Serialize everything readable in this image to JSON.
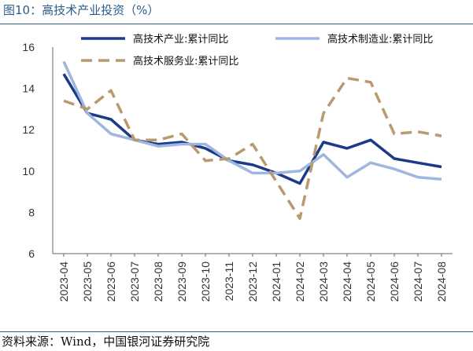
{
  "figure": {
    "title": "图10：高技术产业投资（%）",
    "source": "资料来源：Wind，中国银河证券研究院"
  },
  "chart_data": {
    "type": "line",
    "categories": [
      "2023-04",
      "2023-05",
      "2023-06",
      "2023-07",
      "2023-08",
      "2023-09",
      "2023-10",
      "2023-11",
      "2023-12",
      "2024-01",
      "2024-02",
      "2024-03",
      "2024-04",
      "2024-05",
      "2024-06",
      "2024-07",
      "2024-08"
    ],
    "ylim": [
      6,
      16
    ],
    "yticks": [
      6,
      8,
      10,
      12,
      14,
      16
    ],
    "grid": false,
    "legend": "top",
    "series": [
      {
        "name": "高技术产业:累计同比",
        "color": "#1b3a8a",
        "dash": "solid",
        "values": [
          14.7,
          12.8,
          12.5,
          11.5,
          11.3,
          11.4,
          11.1,
          10.5,
          10.3,
          9.9,
          9.4,
          11.4,
          11.1,
          11.5,
          10.6,
          10.4,
          10.2
        ]
      },
      {
        "name": "高技术制造业:累计同比",
        "color": "#9fb6e0",
        "dash": "solid",
        "values": [
          15.3,
          12.8,
          11.8,
          11.5,
          11.2,
          11.3,
          11.3,
          10.5,
          9.9,
          9.9,
          10.0,
          10.8,
          9.7,
          10.4,
          10.1,
          9.7,
          9.6
        ]
      },
      {
        "name": "高技术服务业:累计同比",
        "color": "#b89a6e",
        "dash": "dashed",
        "values": [
          13.4,
          13.0,
          13.9,
          11.5,
          11.5,
          11.8,
          10.5,
          10.6,
          11.3,
          null,
          7.7,
          12.8,
          14.5,
          14.3,
          11.8,
          11.9,
          11.7
        ]
      }
    ]
  }
}
